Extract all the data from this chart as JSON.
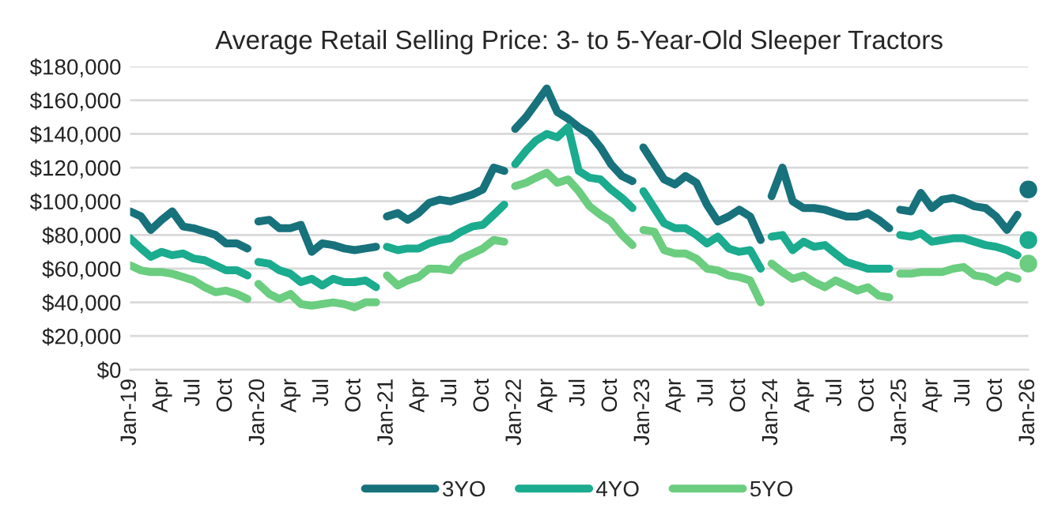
{
  "chart_data": {
    "type": "line",
    "title": "Average Retail Selling Price: 3- to 5-Year-Old Sleeper Tractors",
    "xlim": [
      "2019-01",
      "2026-01"
    ],
    "xticks": [
      {
        "value": "2019-01",
        "label": "Jan-19"
      },
      {
        "value": "2019-04",
        "label": "Apr"
      },
      {
        "value": "2019-07",
        "label": "Jul"
      },
      {
        "value": "2019-10",
        "label": "Oct"
      },
      {
        "value": "2020-01",
        "label": "Jan-20"
      },
      {
        "value": "2020-04",
        "label": "Apr"
      },
      {
        "value": "2020-07",
        "label": "Jul"
      },
      {
        "value": "2020-10",
        "label": "Oct"
      },
      {
        "value": "2021-01",
        "label": "Jan-21"
      },
      {
        "value": "2021-04",
        "label": "Apr"
      },
      {
        "value": "2021-07",
        "label": "Jul"
      },
      {
        "value": "2021-10",
        "label": "Oct"
      },
      {
        "value": "2022-01",
        "label": "Jan-22"
      },
      {
        "value": "2022-04",
        "label": "Apr"
      },
      {
        "value": "2022-07",
        "label": "Jul"
      },
      {
        "value": "2022-10",
        "label": "Oct"
      },
      {
        "value": "2023-01",
        "label": "Jan-23"
      },
      {
        "value": "2023-04",
        "label": "Apr"
      },
      {
        "value": "2023-07",
        "label": "Jul"
      },
      {
        "value": "2023-10",
        "label": "Oct"
      },
      {
        "value": "2024-01",
        "label": "Jan-24"
      },
      {
        "value": "2024-04",
        "label": "Apr"
      },
      {
        "value": "2024-07",
        "label": "Jul"
      },
      {
        "value": "2024-10",
        "label": "Oct"
      },
      {
        "value": "2025-01",
        "label": "Jan-25"
      },
      {
        "value": "2025-04",
        "label": "Apr"
      },
      {
        "value": "2025-07",
        "label": "Jul"
      },
      {
        "value": "2025-10",
        "label": "Oct"
      },
      {
        "value": "2026-01",
        "label": "Jan-26"
      }
    ],
    "ylim": [
      0,
      180000
    ],
    "yticks": [
      {
        "value": 0,
        "label": "$0"
      },
      {
        "value": 20000,
        "label": "$20,000"
      },
      {
        "value": 40000,
        "label": "$40,000"
      },
      {
        "value": 60000,
        "label": "$60,000"
      },
      {
        "value": 80000,
        "label": "$80,000"
      },
      {
        "value": 100000,
        "label": "$100,000"
      },
      {
        "value": 120000,
        "label": "$120,000"
      },
      {
        "value": 140000,
        "label": "$140,000"
      },
      {
        "value": 160000,
        "label": "$160,000"
      },
      {
        "value": 180000,
        "label": "$180,000"
      }
    ],
    "grid": "y",
    "legend": "bottom",
    "marker": "none",
    "line_style": "solid",
    "series": [
      {
        "name": "3YO",
        "color": "#17727c",
        "x": [
          "2019-01",
          "2019-02",
          "2019-03",
          "2019-04",
          "2019-05",
          "2019-06",
          "2019-07",
          "2019-08",
          "2019-09",
          "2019-10",
          "2019-11",
          "2019-12"
        ],
        "values": [
          94000,
          91000,
          83000,
          89000,
          94000,
          85000,
          84000,
          82000,
          80000,
          75000,
          75000,
          72000
        ]
      },
      {
        "name": "4YO",
        "color": "#1bab8f",
        "x": [
          "2019-01",
          "2019-02",
          "2019-03",
          "2019-04",
          "2019-05",
          "2019-06",
          "2019-07",
          "2019-08",
          "2019-09",
          "2019-10",
          "2019-11",
          "2019-12"
        ],
        "values": [
          78000,
          72000,
          67000,
          70000,
          68000,
          69000,
          66000,
          65000,
          62000,
          59000,
          59000,
          56000
        ]
      },
      {
        "name": "5YO",
        "color": "#6bcd7f",
        "x": [
          "2019-01",
          "2019-02",
          "2019-03",
          "2019-04",
          "2019-05",
          "2019-06",
          "2019-07",
          "2019-08",
          "2019-09",
          "2019-10",
          "2019-11",
          "2019-12"
        ],
        "values": [
          62000,
          59000,
          58000,
          58000,
          57000,
          55000,
          53000,
          49000,
          46000,
          47000,
          45000,
          42000
        ]
      },
      {
        "color": "#17727c",
        "x": [
          "2020-01",
          "2020-02",
          "2020-03",
          "2020-04",
          "2020-05",
          "2020-06",
          "2020-07",
          "2020-08",
          "2020-09",
          "2020-10",
          "2020-11",
          "2020-12"
        ],
        "values": [
          88000,
          89000,
          84000,
          84000,
          86000,
          70000,
          75000,
          74000,
          72000,
          71000,
          72000,
          73000
        ]
      },
      {
        "color": "#1bab8f",
        "x": [
          "2020-01",
          "2020-02",
          "2020-03",
          "2020-04",
          "2020-05",
          "2020-06",
          "2020-07",
          "2020-08",
          "2020-09",
          "2020-10",
          "2020-11",
          "2020-12"
        ],
        "values": [
          64000,
          63000,
          59000,
          57000,
          52000,
          54000,
          50000,
          54000,
          52000,
          52000,
          53000,
          49000
        ]
      },
      {
        "color": "#6bcd7f",
        "x": [
          "2020-01",
          "2020-02",
          "2020-03",
          "2020-04",
          "2020-05",
          "2020-06",
          "2020-07",
          "2020-08",
          "2020-09",
          "2020-10",
          "2020-11",
          "2020-12"
        ],
        "values": [
          51000,
          45000,
          42000,
          45000,
          39000,
          38000,
          39000,
          40000,
          39000,
          37000,
          40000,
          40000
        ]
      },
      {
        "color": "#17727c",
        "x": [
          "2021-01",
          "2021-02",
          "2021-03",
          "2021-04",
          "2021-05",
          "2021-06",
          "2021-07",
          "2021-08",
          "2021-09",
          "2021-10",
          "2021-11",
          "2021-12"
        ],
        "values": [
          91000,
          93000,
          89000,
          93000,
          99000,
          101000,
          100000,
          102000,
          104000,
          107000,
          120000,
          118000
        ]
      },
      {
        "color": "#1bab8f",
        "x": [
          "2021-01",
          "2021-02",
          "2021-03",
          "2021-04",
          "2021-05",
          "2021-06",
          "2021-07",
          "2021-08",
          "2021-09",
          "2021-10",
          "2021-11",
          "2021-12"
        ],
        "values": [
          73000,
          71000,
          72000,
          72000,
          75000,
          77000,
          78000,
          82000,
          85000,
          86000,
          92000,
          98000
        ]
      },
      {
        "color": "#6bcd7f",
        "x": [
          "2021-01",
          "2021-02",
          "2021-03",
          "2021-04",
          "2021-05",
          "2021-06",
          "2021-07",
          "2021-08",
          "2021-09",
          "2021-10",
          "2021-11",
          "2021-12"
        ],
        "values": [
          56000,
          50000,
          53000,
          55000,
          60000,
          60000,
          59000,
          66000,
          69000,
          72000,
          77000,
          76000
        ]
      },
      {
        "color": "#17727c",
        "x": [
          "2022-01",
          "2022-02",
          "2022-03",
          "2022-04",
          "2022-05",
          "2022-06",
          "2022-07",
          "2022-08",
          "2022-09",
          "2022-10",
          "2022-11",
          "2022-12"
        ],
        "values": [
          143000,
          150000,
          158000,
          167000,
          153000,
          149000,
          144000,
          140000,
          132000,
          122000,
          115000,
          112000
        ]
      },
      {
        "color": "#1bab8f",
        "x": [
          "2022-01",
          "2022-02",
          "2022-03",
          "2022-04",
          "2022-05",
          "2022-06",
          "2022-07",
          "2022-08",
          "2022-09",
          "2022-10",
          "2022-11",
          "2022-12"
        ],
        "values": [
          122000,
          130000,
          136000,
          140000,
          138000,
          144000,
          118000,
          114000,
          113000,
          107000,
          102000,
          96000
        ]
      },
      {
        "color": "#6bcd7f",
        "x": [
          "2022-01",
          "2022-02",
          "2022-03",
          "2022-04",
          "2022-05",
          "2022-06",
          "2022-07",
          "2022-08",
          "2022-09",
          "2022-10",
          "2022-11",
          "2022-12"
        ],
        "values": [
          109000,
          111000,
          114000,
          117000,
          111000,
          113000,
          106000,
          97000,
          92000,
          88000,
          80000,
          74000
        ]
      },
      {
        "color": "#17727c",
        "x": [
          "2023-01",
          "2023-02",
          "2023-03",
          "2023-04",
          "2023-05",
          "2023-06",
          "2023-07",
          "2023-08",
          "2023-09",
          "2023-10",
          "2023-11",
          "2023-12"
        ],
        "values": [
          132000,
          122000,
          113000,
          110000,
          115000,
          111000,
          98000,
          88000,
          91000,
          95000,
          91000,
          77000
        ]
      },
      {
        "color": "#1bab8f",
        "x": [
          "2023-01",
          "2023-02",
          "2023-03",
          "2023-04",
          "2023-05",
          "2023-06",
          "2023-07",
          "2023-08",
          "2023-09",
          "2023-10",
          "2023-11",
          "2023-12"
        ],
        "values": [
          106000,
          96000,
          87000,
          84000,
          84000,
          80000,
          75000,
          79000,
          72000,
          70000,
          71000,
          60000
        ]
      },
      {
        "color": "#6bcd7f",
        "x": [
          "2023-01",
          "2023-02",
          "2023-03",
          "2023-04",
          "2023-05",
          "2023-06",
          "2023-07",
          "2023-08",
          "2023-09",
          "2023-10",
          "2023-11",
          "2023-12"
        ],
        "values": [
          83000,
          82000,
          71000,
          69000,
          69000,
          66000,
          60000,
          59000,
          56000,
          55000,
          53000,
          40000
        ]
      },
      {
        "color": "#17727c",
        "x": [
          "2024-01",
          "2024-02",
          "2024-03",
          "2024-04",
          "2024-05",
          "2024-06",
          "2024-07",
          "2024-08",
          "2024-09",
          "2024-10",
          "2024-11",
          "2024-12"
        ],
        "values": [
          103000,
          120000,
          100000,
          96000,
          96000,
          95000,
          93000,
          91000,
          91000,
          93000,
          89000,
          84000
        ]
      },
      {
        "color": "#1bab8f",
        "x": [
          "2024-01",
          "2024-02",
          "2024-03",
          "2024-04",
          "2024-05",
          "2024-06",
          "2024-07",
          "2024-08",
          "2024-09",
          "2024-10",
          "2024-11",
          "2024-12"
        ],
        "values": [
          79000,
          80000,
          71000,
          76000,
          73000,
          74000,
          69000,
          64000,
          62000,
          60000,
          60000,
          60000
        ]
      },
      {
        "color": "#6bcd7f",
        "x": [
          "2024-01",
          "2024-02",
          "2024-03",
          "2024-04",
          "2024-05",
          "2024-06",
          "2024-07",
          "2024-08",
          "2024-09",
          "2024-10",
          "2024-11",
          "2024-12"
        ],
        "values": [
          63000,
          58000,
          54000,
          56000,
          52000,
          49000,
          53000,
          50000,
          47000,
          49000,
          44000,
          43000
        ]
      },
      {
        "color": "#17727c",
        "x": [
          "2025-01",
          "2025-02",
          "2025-03",
          "2025-04",
          "2025-05",
          "2025-06",
          "2025-07",
          "2025-08",
          "2025-09",
          "2025-10",
          "2025-11",
          "2025-12"
        ],
        "values": [
          95000,
          94000,
          105000,
          96000,
          101000,
          102000,
          100000,
          97000,
          96000,
          91000,
          83000,
          92000
        ]
      },
      {
        "color": "#1bab8f",
        "x": [
          "2025-01",
          "2025-02",
          "2025-03",
          "2025-04",
          "2025-05",
          "2025-06",
          "2025-07",
          "2025-08",
          "2025-09",
          "2025-10",
          "2025-11",
          "2025-12"
        ],
        "values": [
          80000,
          79000,
          81000,
          76000,
          77000,
          78000,
          78000,
          76000,
          74000,
          73000,
          71000,
          68000
        ]
      },
      {
        "color": "#6bcd7f",
        "x": [
          "2025-01",
          "2025-02",
          "2025-03",
          "2025-04",
          "2025-05",
          "2025-06",
          "2025-07",
          "2025-08",
          "2025-09",
          "2025-10",
          "2025-11",
          "2025-12"
        ],
        "values": [
          57000,
          57000,
          58000,
          58000,
          58000,
          60000,
          61000,
          56000,
          55000,
          52000,
          56000,
          54000
        ]
      },
      {
        "type": "scatter",
        "marker": "circle",
        "color": "#17727c",
        "x": [
          "2026-01"
        ],
        "values": [
          107000
        ]
      },
      {
        "type": "scatter",
        "marker": "circle",
        "color": "#1bab8f",
        "x": [
          "2026-01"
        ],
        "values": [
          77000
        ]
      },
      {
        "type": "scatter",
        "marker": "circle",
        "color": "#6bcd7f",
        "x": [
          "2026-01"
        ],
        "values": [
          63000
        ]
      }
    ]
  }
}
